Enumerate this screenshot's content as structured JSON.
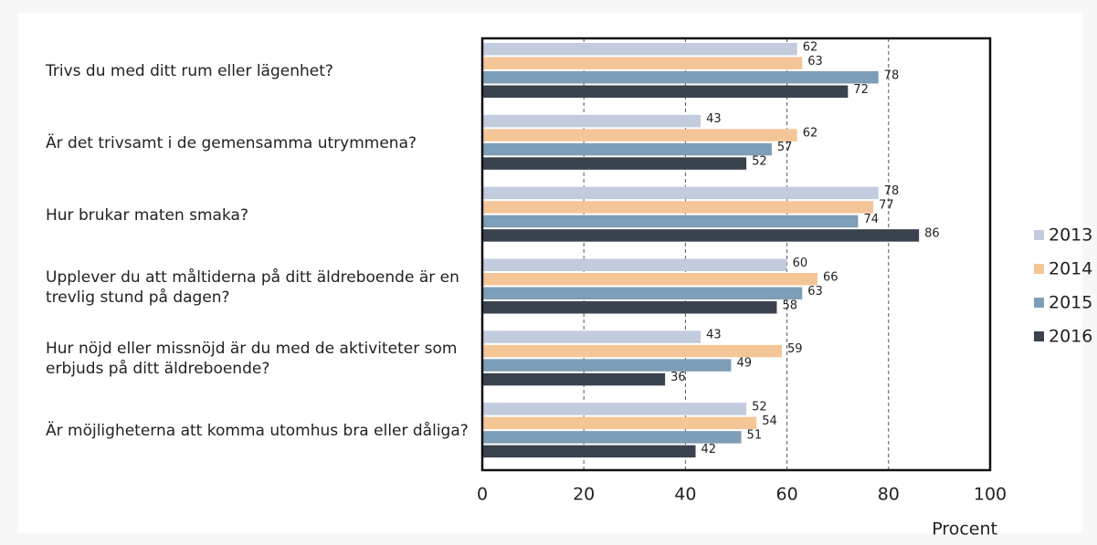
{
  "chart_data": {
    "type": "bar",
    "orientation": "horizontal",
    "categories": [
      "Trivs du med ditt rum eller lägenhet?",
      "Är det trivsamt i de gemensamma utrymmena?",
      "Hur brukar maten smaka?",
      "Upplever du att måltiderna på ditt äldreboende är en trevlig stund på dagen?",
      "Hur nöjd eller missnöjd är du med de aktiviteter som erbjuds på ditt äldreboende?",
      "Är möjligheterna att komma utomhus bra eller dåliga?"
    ],
    "series": [
      {
        "name": "2013",
        "color": "#c3cbdf",
        "values": [
          62,
          43,
          78,
          60,
          43,
          52
        ]
      },
      {
        "name": "2014",
        "color": "#f4c697",
        "values": [
          63,
          62,
          77,
          66,
          59,
          54
        ]
      },
      {
        "name": "2015",
        "color": "#7e9db6",
        "values": [
          78,
          57,
          74,
          63,
          49,
          51
        ]
      },
      {
        "name": "2016",
        "color": "#3a424e",
        "values": [
          72,
          52,
          86,
          58,
          36,
          42
        ]
      }
    ],
    "xlabel": "Procent",
    "xlim": [
      0,
      100
    ],
    "xticks": [
      0,
      20,
      40,
      60,
      80,
      100
    ],
    "grid": true,
    "legend": "right"
  }
}
